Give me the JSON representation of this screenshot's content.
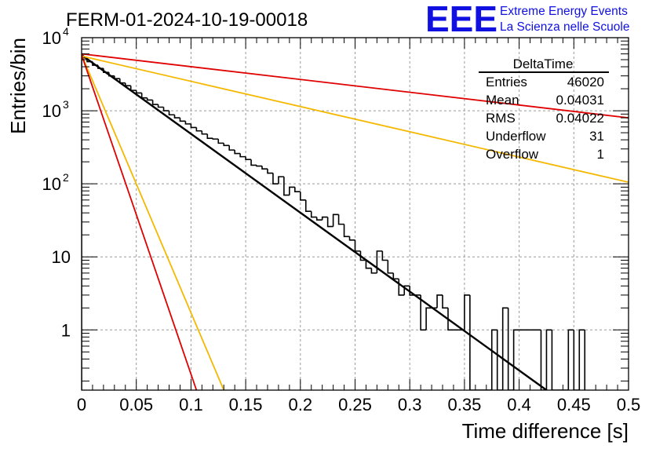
{
  "chart_data": {
    "type": "histogram",
    "title": "FERM-01-2024-10-19-00018",
    "xlabel": "Time difference [s]",
    "ylabel": "Entries/bin",
    "xlim": [
      0,
      0.5
    ],
    "ylim": [
      0.15,
      10000
    ],
    "yscale": "log",
    "grid": true,
    "x_ticks": [
      "0",
      "0.05",
      "0.1",
      "0.15",
      "0.2",
      "0.25",
      "0.3",
      "0.35",
      "0.4",
      "0.45",
      "0.5"
    ],
    "y_ticks": [
      {
        "value": 1,
        "label": "1"
      },
      {
        "value": 10,
        "label": "10"
      },
      {
        "value": 100,
        "base": "10",
        "exp": "2"
      },
      {
        "value": 1000,
        "base": "10",
        "exp": "3"
      },
      {
        "value": 10000,
        "base": "10",
        "exp": "4"
      }
    ],
    "histogram": {
      "name": "DeltaTime",
      "bin_width": 0.005,
      "color": "#000000",
      "bins": [
        {
          "x": 0.0,
          "y": 5300
        },
        {
          "x": 0.005,
          "y": 4700
        },
        {
          "x": 0.01,
          "y": 4200
        },
        {
          "x": 0.015,
          "y": 3800
        },
        {
          "x": 0.02,
          "y": 3350
        },
        {
          "x": 0.025,
          "y": 3000
        },
        {
          "x": 0.03,
          "y": 2750
        },
        {
          "x": 0.035,
          "y": 2400
        },
        {
          "x": 0.04,
          "y": 2200
        },
        {
          "x": 0.045,
          "y": 1900
        },
        {
          "x": 0.05,
          "y": 1750
        },
        {
          "x": 0.055,
          "y": 1500
        },
        {
          "x": 0.06,
          "y": 1400
        },
        {
          "x": 0.065,
          "y": 1220
        },
        {
          "x": 0.07,
          "y": 1120
        },
        {
          "x": 0.075,
          "y": 1000
        },
        {
          "x": 0.08,
          "y": 880
        },
        {
          "x": 0.085,
          "y": 800
        },
        {
          "x": 0.09,
          "y": 720
        },
        {
          "x": 0.095,
          "y": 660
        },
        {
          "x": 0.1,
          "y": 590
        },
        {
          "x": 0.105,
          "y": 530
        },
        {
          "x": 0.11,
          "y": 480
        },
        {
          "x": 0.115,
          "y": 420
        },
        {
          "x": 0.12,
          "y": 410
        },
        {
          "x": 0.125,
          "y": 360
        },
        {
          "x": 0.13,
          "y": 335
        },
        {
          "x": 0.135,
          "y": 290
        },
        {
          "x": 0.14,
          "y": 260
        },
        {
          "x": 0.145,
          "y": 235
        },
        {
          "x": 0.15,
          "y": 215
        },
        {
          "x": 0.155,
          "y": 180
        },
        {
          "x": 0.16,
          "y": 175
        },
        {
          "x": 0.165,
          "y": 160
        },
        {
          "x": 0.17,
          "y": 140
        },
        {
          "x": 0.175,
          "y": 100
        },
        {
          "x": 0.18,
          "y": 125
        },
        {
          "x": 0.185,
          "y": 70
        },
        {
          "x": 0.19,
          "y": 90
        },
        {
          "x": 0.195,
          "y": 78
        },
        {
          "x": 0.2,
          "y": 60
        },
        {
          "x": 0.205,
          "y": 42
        },
        {
          "x": 0.21,
          "y": 35
        },
        {
          "x": 0.215,
          "y": 32
        },
        {
          "x": 0.22,
          "y": 35
        },
        {
          "x": 0.225,
          "y": 26
        },
        {
          "x": 0.23,
          "y": 38
        },
        {
          "x": 0.235,
          "y": 28
        },
        {
          "x": 0.24,
          "y": 19
        },
        {
          "x": 0.245,
          "y": 17
        },
        {
          "x": 0.25,
          "y": 12
        },
        {
          "x": 0.255,
          "y": 9
        },
        {
          "x": 0.26,
          "y": 7
        },
        {
          "x": 0.265,
          "y": 6
        },
        {
          "x": 0.27,
          "y": 12
        },
        {
          "x": 0.275,
          "y": 9
        },
        {
          "x": 0.28,
          "y": 6
        },
        {
          "x": 0.285,
          "y": 5
        },
        {
          "x": 0.29,
          "y": 3
        },
        {
          "x": 0.295,
          "y": 4
        },
        {
          "x": 0.3,
          "y": 3
        },
        {
          "x": 0.305,
          "y": 3
        },
        {
          "x": 0.31,
          "y": 1
        },
        {
          "x": 0.315,
          "y": 2
        },
        {
          "x": 0.32,
          "y": 2
        },
        {
          "x": 0.325,
          "y": 3
        },
        {
          "x": 0.33,
          "y": 2
        },
        {
          "x": 0.335,
          "y": 1
        },
        {
          "x": 0.34,
          "y": 1
        },
        {
          "x": 0.345,
          "y": 1
        },
        {
          "x": 0.35,
          "y": 3
        },
        {
          "x": 0.355,
          "y": 0
        },
        {
          "x": 0.36,
          "y": 0
        },
        {
          "x": 0.365,
          "y": 0
        },
        {
          "x": 0.37,
          "y": 0
        },
        {
          "x": 0.375,
          "y": 1
        },
        {
          "x": 0.38,
          "y": 0
        },
        {
          "x": 0.385,
          "y": 2
        },
        {
          "x": 0.39,
          "y": 0
        },
        {
          "x": 0.395,
          "y": 1
        },
        {
          "x": 0.4,
          "y": 1
        },
        {
          "x": 0.405,
          "y": 1
        },
        {
          "x": 0.41,
          "y": 1
        },
        {
          "x": 0.415,
          "y": 1
        },
        {
          "x": 0.42,
          "y": 0
        },
        {
          "x": 0.425,
          "y": 1
        },
        {
          "x": 0.43,
          "y": 0
        },
        {
          "x": 0.435,
          "y": 0
        },
        {
          "x": 0.44,
          "y": 0
        },
        {
          "x": 0.445,
          "y": 1
        },
        {
          "x": 0.45,
          "y": 0
        },
        {
          "x": 0.455,
          "y": 1
        }
      ]
    },
    "fit_lines": [
      {
        "name": "",
        "color": "#000000",
        "width": 2.4,
        "points": [
          [
            0,
            5800
          ],
          [
            0.425,
            0.15
          ]
        ]
      },
      {
        "name": "",
        "color": "#e00000",
        "width": 1.8,
        "points": [
          [
            0,
            6000
          ],
          [
            0.5,
            800
          ]
        ]
      },
      {
        "name": "",
        "color": "#f5b800",
        "width": 1.8,
        "points": [
          [
            0,
            5600
          ],
          [
            0.5,
            105
          ]
        ]
      },
      {
        "name": "",
        "color": "#f5b800",
        "width": 1.8,
        "points": [
          [
            0,
            5800
          ],
          [
            0.13,
            0.15
          ]
        ]
      },
      {
        "name": "",
        "color": "#e00000",
        "width": 1.8,
        "points": [
          [
            0,
            5800
          ],
          [
            0.105,
            0.15
          ]
        ]
      }
    ],
    "stats_box": {
      "title": "DeltaTime",
      "rows": [
        {
          "label": "Entries",
          "value": "46020"
        },
        {
          "label": "Mean",
          "value": "0.04031"
        },
        {
          "label": "RMS",
          "value": "0.04022"
        },
        {
          "label": "Underflow",
          "value": "31"
        },
        {
          "label": "Overflow",
          "value": "1"
        }
      ]
    }
  },
  "logo": {
    "mark": "EEE",
    "line1": "Extreme Energy Events",
    "line2": "La Scienza nelle Scuole",
    "color": "#1010e0"
  }
}
